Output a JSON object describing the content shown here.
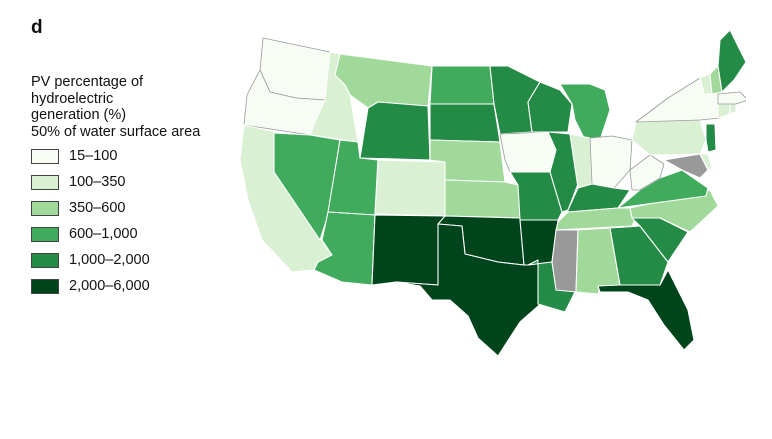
{
  "panel_label": "d",
  "legend": {
    "title_lines": [
      "PV percentage of",
      "hydroelectric",
      "generation (%)",
      "50% of water surface area"
    ],
    "items": [
      {
        "label": "15–100",
        "color": "#f7fcf5"
      },
      {
        "label": "100–350",
        "color": "#d9f0d3"
      },
      {
        "label": "350–600",
        "color": "#a1d99b"
      },
      {
        "label": "600–1,000",
        "color": "#41ab5d"
      },
      {
        "label": "1,000–2,000",
        "color": "#238b45"
      },
      {
        "label": "2,000–6,000",
        "color": "#00441b"
      }
    ]
  },
  "colors": {
    "no_data": "#999999",
    "state_border": "#ffffff",
    "outline": "#9a9a9a"
  },
  "states": {
    "WA": 0,
    "OR": 0,
    "CA": 1,
    "ID": 1,
    "NV": 3,
    "MT": 2,
    "WY": 4,
    "UT": 3,
    "AZ": 3,
    "CO": 1,
    "NM": 5,
    "ND": 3,
    "SD": 4,
    "NE": 2,
    "KS": 2,
    "OK": 5,
    "TX": 5,
    "MN": 4,
    "IA": 0,
    "MO": 4,
    "AR": 5,
    "LA": 4,
    "WI": 4,
    "IL": 4,
    "MI": 3,
    "IN": 1,
    "OH": 0,
    "KY": 4,
    "TN": 2,
    "MS": "no_data",
    "AL": 2,
    "GA": 4,
    "FL": 5,
    "SC": 4,
    "NC": 2,
    "VA": 3,
    "WV": 0,
    "PA": 1,
    "NY": 0,
    "VT": 1,
    "NH": 2,
    "ME": 4,
    "MA": 0,
    "CT": 1,
    "RI": 1,
    "NJ": 4,
    "DE": 1,
    "MD": "no_data"
  }
}
